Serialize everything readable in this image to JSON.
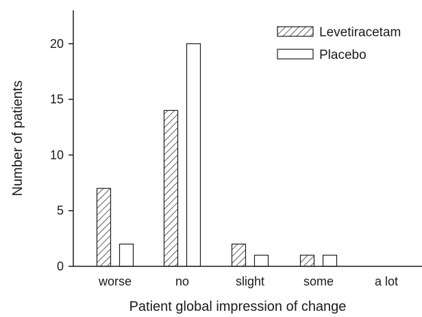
{
  "chart_data": {
    "type": "bar",
    "title": "",
    "xlabel": "Patient global impression of change",
    "ylabel": "Number of patients",
    "categories": [
      "worse",
      "no",
      "slight",
      "some",
      "a lot"
    ],
    "series": [
      {
        "name": "Levetiracetam",
        "values": [
          7,
          14,
          2,
          1,
          0
        ],
        "fill": "hatched"
      },
      {
        "name": "Placebo",
        "values": [
          2,
          20,
          1,
          1,
          0
        ],
        "fill": "open"
      }
    ],
    "ylim": [
      0,
      23
    ],
    "yticks": [
      "0",
      "5",
      "10",
      "15",
      "20"
    ],
    "grid": false,
    "legend_position": "top-right",
    "colors": {
      "stroke": "#1a1a1a",
      "hatch": "#1a1a1a",
      "background": "#ffffff"
    }
  }
}
